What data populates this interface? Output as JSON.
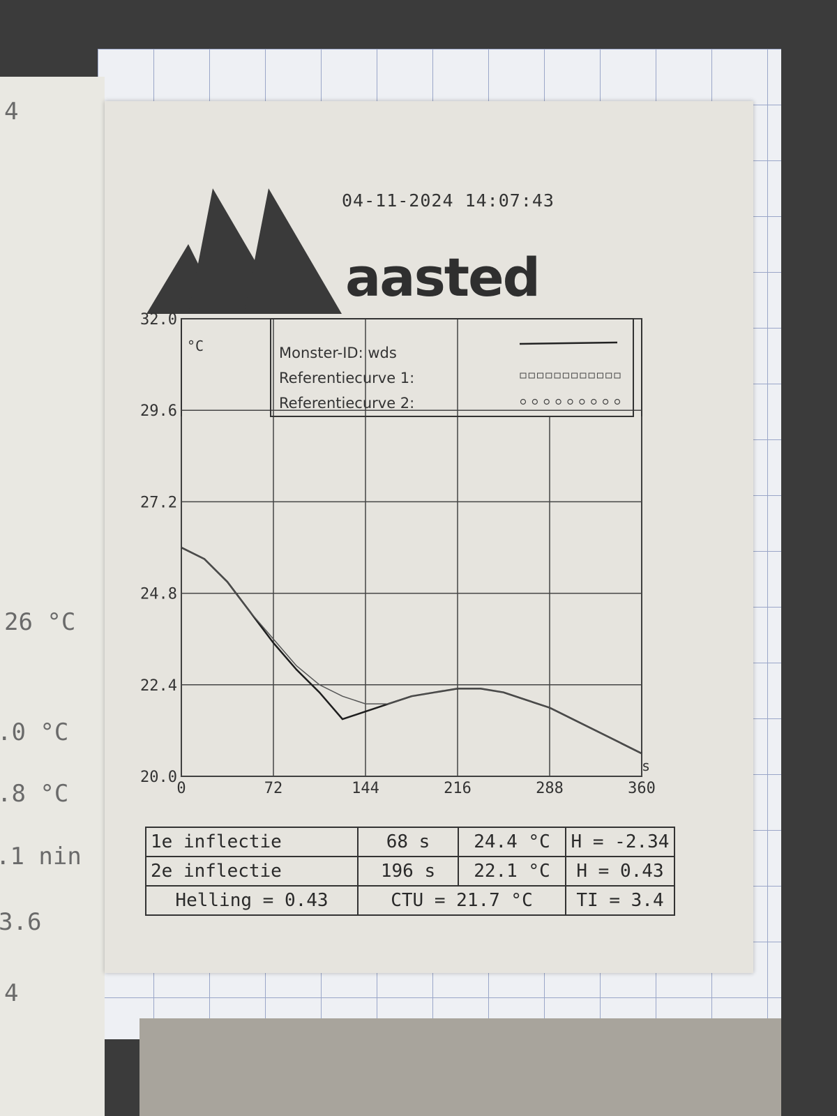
{
  "receipt": {
    "timestamp": "04-11-2024 14:07:43",
    "brand": "aasted"
  },
  "background_notes": [
    "4",
    "26 °C",
    ".0 °C",
    ".8 °C",
    ".1 nin",
    "3.6",
    "4"
  ],
  "chart_data": {
    "type": "line",
    "title": "",
    "xlabel": "s",
    "ylabel": "°C",
    "xlim": [
      0,
      360
    ],
    "ylim": [
      20.0,
      32.0
    ],
    "x_ticks": [
      "0",
      "72",
      "144",
      "216",
      "288",
      "360"
    ],
    "y_ticks": [
      "32.0",
      "29.6",
      "27.2",
      "24.8",
      "22.4",
      "20.0"
    ],
    "grid": true,
    "legend": [
      {
        "label": "Monster-ID: wds",
        "style": "solid"
      },
      {
        "label": "Referentiecurve 1:",
        "style": "squares"
      },
      {
        "label": "Referentiecurve 2:",
        "style": "circles"
      }
    ],
    "series": [
      {
        "name": "Monster-ID: wds",
        "x": [
          0,
          18,
          36,
          54,
          72,
          90,
          108,
          126,
          144,
          162,
          180,
          198,
          216,
          234,
          252,
          270,
          288,
          306,
          324,
          342,
          360
        ],
        "y": [
          26.0,
          25.7,
          25.1,
          24.3,
          23.5,
          22.8,
          22.2,
          21.5,
          21.7,
          21.9,
          22.1,
          22.2,
          22.3,
          22.3,
          22.2,
          22.0,
          21.8,
          21.5,
          21.2,
          20.9,
          20.6
        ]
      },
      {
        "name": "Referentiecurve 1:",
        "x": [
          0,
          18,
          36,
          54,
          72,
          90,
          108,
          126,
          144,
          162,
          180,
          198,
          216,
          234,
          252,
          270,
          288,
          306,
          324,
          342,
          360
        ],
        "y": [
          26.0,
          25.7,
          25.1,
          24.3,
          23.6,
          22.9,
          22.4,
          22.1,
          21.9,
          21.9,
          22.1,
          22.2,
          22.3,
          22.3,
          22.2,
          22.0,
          21.8,
          21.5,
          21.2,
          20.9,
          20.6
        ]
      }
    ]
  },
  "stats": {
    "row1": {
      "label": "1e inflectie",
      "time": "68 s",
      "temp": "24.4 °C",
      "h": "H = -2.34"
    },
    "row2": {
      "label": "2e inflectie",
      "time": "196 s",
      "temp": "22.1 °C",
      "h": "H = 0.43"
    },
    "row3": {
      "helling": "Helling = 0.43",
      "ctu": "CTU = 21.7 °C",
      "ti": "TI = 3.4"
    }
  }
}
